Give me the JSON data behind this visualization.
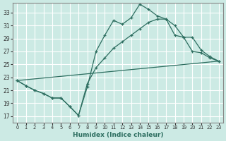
{
  "xlabel": "Humidex (Indice chaleur)",
  "bg_color": "#cceae4",
  "grid_color": "#ffffff",
  "line_color": "#2d6e60",
  "xlim": [
    -0.5,
    23.5
  ],
  "ylim": [
    16.0,
    34.5
  ],
  "yticks": [
    17,
    19,
    21,
    23,
    25,
    27,
    29,
    31,
    33
  ],
  "xticks": [
    0,
    1,
    2,
    3,
    4,
    5,
    6,
    7,
    8,
    9,
    10,
    11,
    12,
    13,
    14,
    15,
    16,
    17,
    18,
    19,
    20,
    21,
    22,
    23
  ],
  "line1_x": [
    0,
    1,
    2,
    3,
    4,
    5,
    6,
    7,
    8,
    9,
    10,
    11,
    12,
    13,
    14,
    15,
    16,
    17,
    18,
    19,
    20,
    21,
    22,
    23
  ],
  "line1_y": [
    22.5,
    21.7,
    21.0,
    20.5,
    19.8,
    19.8,
    18.5,
    17.1,
    21.5,
    27.0,
    29.5,
    31.8,
    31.2,
    32.2,
    34.3,
    33.5,
    32.5,
    32.0,
    29.5,
    29.2,
    27.0,
    26.8,
    26.0,
    25.5
  ],
  "line2_x": [
    0,
    1,
    2,
    3,
    4,
    5,
    6,
    7,
    8,
    9,
    10,
    11,
    12,
    13,
    14,
    15,
    16,
    17,
    18,
    19,
    20,
    21,
    22,
    23
  ],
  "line2_y": [
    22.5,
    21.7,
    21.0,
    20.5,
    19.8,
    19.8,
    18.5,
    17.1,
    22.0,
    24.5,
    26.0,
    27.5,
    28.5,
    29.5,
    30.5,
    31.5,
    32.0,
    32.0,
    31.0,
    29.2,
    29.2,
    27.2,
    26.2,
    25.5
  ],
  "line3_x": [
    0,
    23
  ],
  "line3_y": [
    22.5,
    25.5
  ]
}
